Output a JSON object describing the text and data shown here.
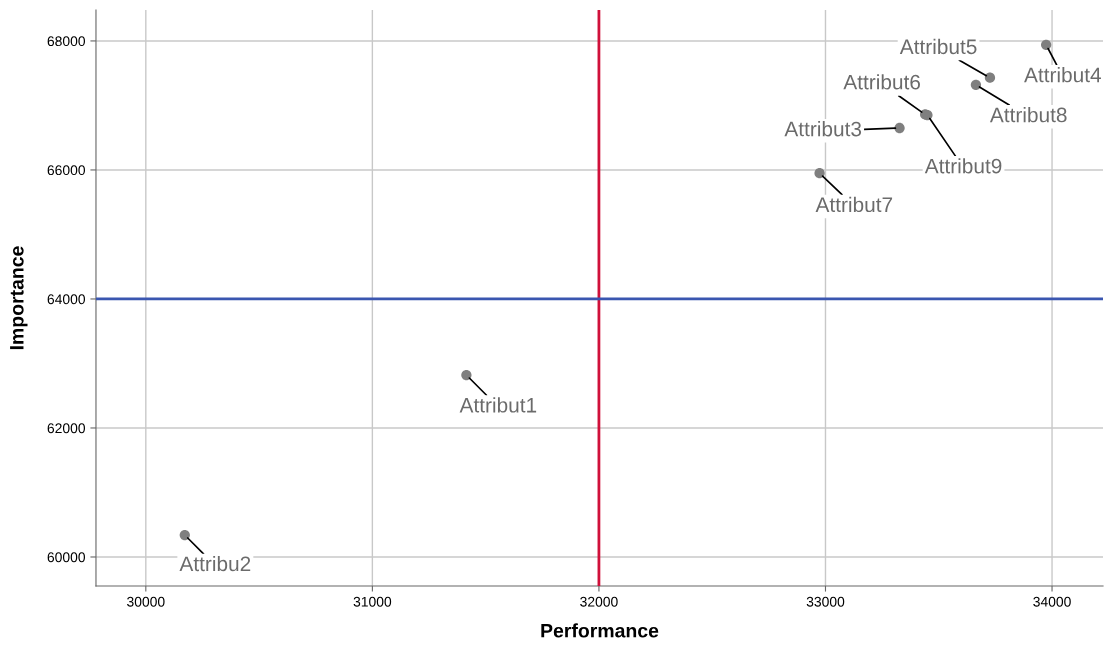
{
  "chart_data": {
    "type": "scatter",
    "xlabel": "Performance",
    "ylabel": "Importance",
    "x": [
      31415,
      30172,
      33327,
      33974,
      33726,
      33440,
      32974,
      33664,
      33450
    ],
    "series": [
      {
        "color": "#7f7f7f",
        "values": [
          62820,
          60340,
          66650,
          67940,
          67430,
          66860,
          65950,
          67320,
          66850
        ],
        "value_labels": [
          "Attribut1",
          "Attribu2",
          "Attribut3",
          "Attribut4",
          "Attribut5",
          "Attribut6",
          "Attribut7",
          "Attribut8",
          "Attribut9"
        ]
      }
    ],
    "xlim": [
      29780,
      34225
    ],
    "xticks": [
      30000,
      31000,
      32000,
      33000,
      34000
    ],
    "ylim": [
      59550,
      68480
    ],
    "yticks": [
      60000,
      62000,
      64000,
      66000,
      68000
    ],
    "ref_lines": [
      {
        "axis": "x",
        "value": 32000,
        "label": null,
        "color": "#d0103a"
      },
      {
        "axis": "y",
        "value": 64000,
        "label": null,
        "color": "#3a56b0"
      }
    ],
    "grid": true,
    "marker": "circle"
  }
}
